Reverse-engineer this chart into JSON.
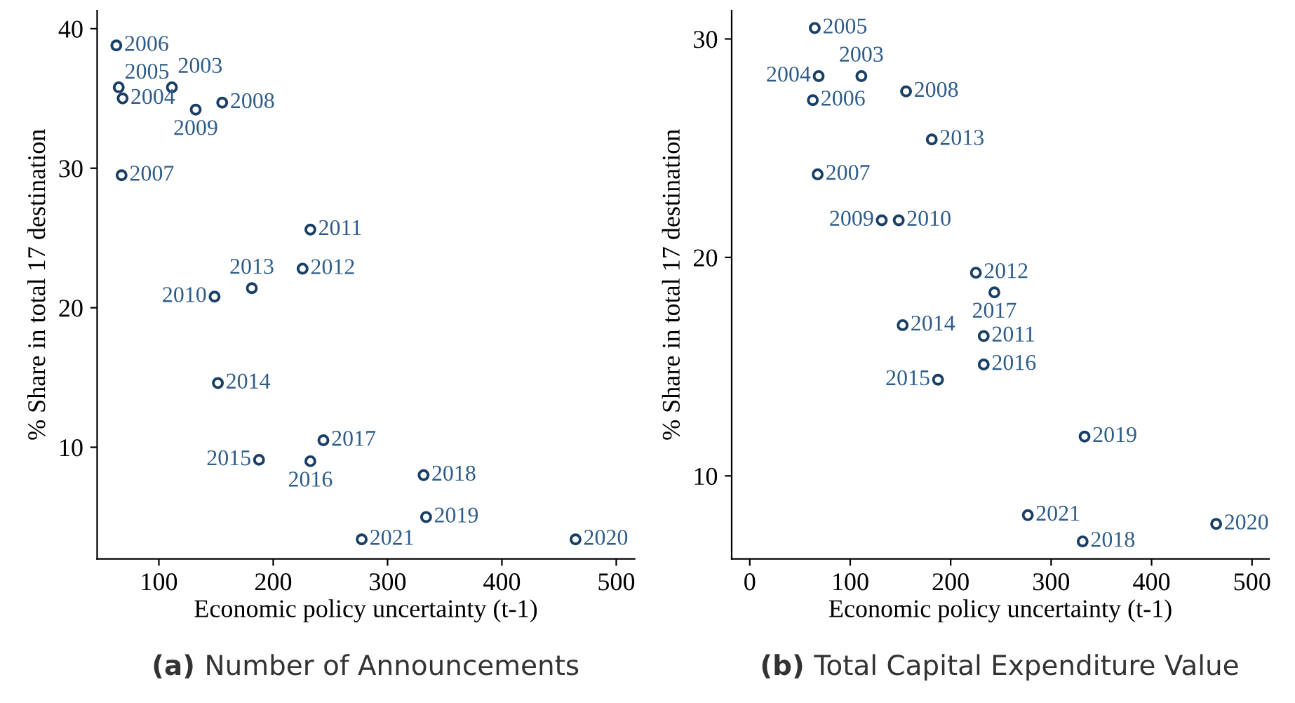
{
  "chart_data": [
    {
      "type": "scatter",
      "title": "(a) Number of Announcements",
      "xlabel": "Economic policy uncertainty (t-1)",
      "ylabel": "% Share in total 17 destination",
      "marker": "circle",
      "grid": false,
      "x": [
        62.8,
        64.9,
        68.3,
        111.4,
        155.4,
        132.2,
        67.4,
        232.5,
        225.7,
        181.3,
        148.7,
        151.6,
        243.9,
        187.6,
        232.5,
        331.5,
        333.7,
        277.4,
        464.4
      ],
      "series": [
        {
          "color": "#1a3f66",
          "values": [
            38.8,
            35.8,
            35.0,
            35.8,
            34.7,
            34.2,
            29.5,
            25.6,
            22.8,
            21.4,
            20.8,
            14.6,
            10.5,
            9.1,
            9.0,
            8.0,
            5.0,
            3.4,
            3.4
          ]
        }
      ],
      "annotations": [
        {
          "text": "2006",
          "x": 62.8,
          "y": 38.8
        },
        {
          "text": "2005",
          "x": 64.9,
          "y": 35.8
        },
        {
          "text": "2004",
          "x": 68.3,
          "y": 35.0
        },
        {
          "text": "2003",
          "x": 111.4,
          "y": 35.8
        },
        {
          "text": "2008",
          "x": 155.4,
          "y": 34.7
        },
        {
          "text": "2009",
          "x": 132.2,
          "y": 34.2
        },
        {
          "text": "2007",
          "x": 67.4,
          "y": 29.5
        },
        {
          "text": "2011",
          "x": 232.5,
          "y": 25.6
        },
        {
          "text": "2012",
          "x": 225.7,
          "y": 22.8
        },
        {
          "text": "2013",
          "x": 181.3,
          "y": 21.4
        },
        {
          "text": "2010",
          "x": 148.7,
          "y": 20.8
        },
        {
          "text": "2014",
          "x": 151.6,
          "y": 14.6
        },
        {
          "text": "2017",
          "x": 243.9,
          "y": 10.5
        },
        {
          "text": "2015",
          "x": 187.6,
          "y": 9.1
        },
        {
          "text": "2016",
          "x": 232.5,
          "y": 9.0
        },
        {
          "text": "2018",
          "x": 331.5,
          "y": 8.0
        },
        {
          "text": "2019",
          "x": 333.7,
          "y": 5.0
        },
        {
          "text": "2021",
          "x": 277.4,
          "y": 3.4
        },
        {
          "text": "2020",
          "x": 464.4,
          "y": 3.4
        }
      ],
      "xlim": [
        46,
        516
      ],
      "xticks": [
        100,
        200,
        300,
        400,
        500
      ],
      "ylim": [
        2,
        41.3
      ],
      "yticks": [
        10,
        20,
        30,
        40
      ]
    },
    {
      "type": "scatter",
      "title": "(b) Total Capital Expenditure Value",
      "xlabel": "Economic policy uncertainty (t-1)",
      "ylabel": "% Share in total 17 destination",
      "marker": "circle",
      "grid": false,
      "x": [
        64.7,
        68.6,
        111.1,
        62.8,
        155.6,
        181.2,
        67.6,
        131.4,
        148.3,
        225.1,
        243.5,
        152.2,
        232.9,
        232.9,
        187.4,
        333.3,
        276.8,
        331.4,
        464.3
      ],
      "series": [
        {
          "color": "#1a3f66",
          "values": [
            30.5,
            28.3,
            28.3,
            27.2,
            27.6,
            25.4,
            23.8,
            21.7,
            21.7,
            19.3,
            18.4,
            16.9,
            16.4,
            15.1,
            14.4,
            11.8,
            8.2,
            7.0,
            7.8
          ]
        }
      ],
      "annotations": [
        {
          "text": "2005",
          "x": 64.7,
          "y": 30.5
        },
        {
          "text": "2004",
          "x": 68.6,
          "y": 28.3
        },
        {
          "text": "2003",
          "x": 111.1,
          "y": 28.3
        },
        {
          "text": "2006",
          "x": 62.8,
          "y": 27.2
        },
        {
          "text": "2008",
          "x": 155.6,
          "y": 27.6
        },
        {
          "text": "2013",
          "x": 181.2,
          "y": 25.4
        },
        {
          "text": "2007",
          "x": 67.6,
          "y": 23.8
        },
        {
          "text": "2009",
          "x": 131.4,
          "y": 21.7
        },
        {
          "text": "2010",
          "x": 148.3,
          "y": 21.7
        },
        {
          "text": "2012",
          "x": 225.1,
          "y": 19.3
        },
        {
          "text": "2017",
          "x": 243.5,
          "y": 18.4
        },
        {
          "text": "2014",
          "x": 152.2,
          "y": 16.9
        },
        {
          "text": "2011",
          "x": 232.9,
          "y": 16.4
        },
        {
          "text": "2016",
          "x": 232.9,
          "y": 15.1
        },
        {
          "text": "2015",
          "x": 187.4,
          "y": 14.4
        },
        {
          "text": "2019",
          "x": 333.3,
          "y": 11.8
        },
        {
          "text": "2021",
          "x": 276.8,
          "y": 8.2
        },
        {
          "text": "2018",
          "x": 331.4,
          "y": 7.0
        },
        {
          "text": "2020",
          "x": 464.3,
          "y": 7.8
        }
      ],
      "xlim": [
        -18,
        517
      ],
      "xticks": [
        0,
        100,
        200,
        300,
        400,
        500
      ],
      "ylim": [
        6.2,
        31.3
      ],
      "yticks": [
        10,
        20,
        30
      ]
    }
  ]
}
